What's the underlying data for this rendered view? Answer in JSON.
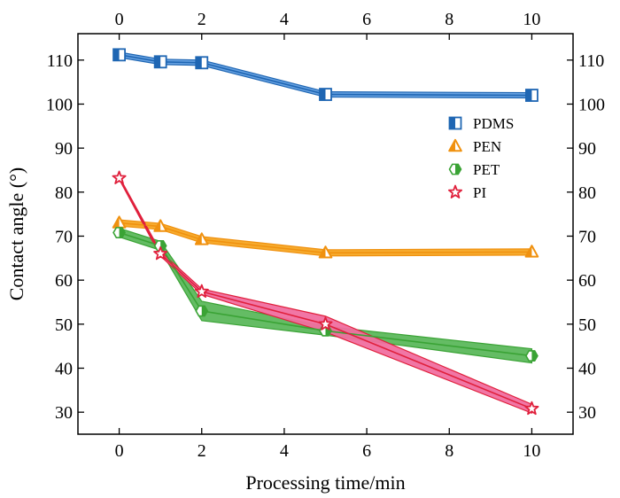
{
  "chart_data": {
    "type": "line",
    "xlabel": "Processing time/min",
    "ylabel": "Contact angle (°)",
    "xlim": [
      -1,
      11
    ],
    "ylim": [
      25,
      116
    ],
    "x_ticks": [
      0,
      2,
      4,
      6,
      8,
      10
    ],
    "y_ticks": [
      30,
      40,
      50,
      60,
      70,
      80,
      90,
      100,
      110
    ],
    "grid": false,
    "legend_position": "top-right",
    "series": [
      {
        "name": "PDMS",
        "marker": "half-filled-square",
        "color": "#1f66b3",
        "band_color": "#5f9de0",
        "x": [
          0,
          1,
          2,
          5,
          10
        ],
        "y": [
          111.2,
          109.6,
          109.4,
          102.2,
          102.0
        ],
        "band": [
          0.6,
          0.6,
          0.6,
          0.6,
          0.6
        ]
      },
      {
        "name": "PEN",
        "marker": "half-filled-triangle",
        "color": "#f0910f",
        "band_color": "#f5a623",
        "x": [
          0,
          1,
          2,
          5,
          10
        ],
        "y": [
          73.0,
          72.2,
          69.2,
          66.2,
          66.4
        ],
        "band": [
          0.7,
          0.7,
          0.7,
          0.7,
          0.7
        ]
      },
      {
        "name": "PET",
        "marker": "half-filled-hexagon",
        "color": "#3aa335",
        "band_color": "#5cb85c",
        "x": [
          0,
          1,
          2,
          5,
          10
        ],
        "y": [
          70.8,
          67.8,
          53.0,
          48.5,
          42.8
        ],
        "band": [
          1.0,
          1.0,
          2.2,
          1.0,
          1.6
        ]
      },
      {
        "name": "PI",
        "marker": "star",
        "color": "#e0203c",
        "band_color": "#f06fa0",
        "x": [
          0,
          1,
          2,
          5,
          10
        ],
        "y": [
          83.2,
          66.0,
          57.4,
          50.0,
          30.8
        ],
        "band": [
          0.3,
          0.5,
          0.6,
          1.8,
          1.0
        ]
      }
    ]
  }
}
